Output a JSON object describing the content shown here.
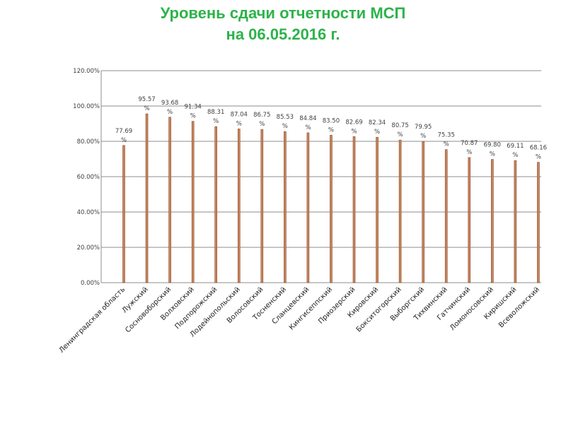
{
  "header": {
    "title_line1": "Уровень сдачи отчетности МСП",
    "title_line2": "на 06.05.2016 г."
  },
  "chart_data": {
    "type": "bar",
    "title": "Уровень сдачи отчетности МСП на 06.05.2016 г.",
    "xlabel": "",
    "ylabel": "",
    "ylim": [
      0,
      120
    ],
    "y_ticks": [
      "0.00%",
      "20.00%",
      "40.00%",
      "60.00%",
      "80.00%",
      "100.00%",
      "120.00%"
    ],
    "grid": true,
    "colors": {
      "bar": "#c8845c",
      "bar_edge": "#8a4e2d",
      "grid": "#8c8c8c",
      "axis": "#8c8c8c"
    },
    "categories": [
      "Ленинградская область",
      "Лужский",
      "Сосновоборский",
      "Волховский",
      "Подпорожский",
      "Лодейнопольский",
      "Волосовский",
      "Тосненский",
      "Сланцевский",
      "Кингисеппский",
      "Приозерский",
      "Кировский",
      "Бокситогорский",
      "Выборгский",
      "Тихвинский",
      "Гатчинский",
      "Ломоносовский",
      "Киришский",
      "Всеволожский"
    ],
    "values": [
      77.69,
      95.57,
      93.68,
      91.34,
      88.31,
      87.04,
      86.75,
      85.53,
      84.84,
      83.5,
      82.69,
      82.34,
      80.75,
      79.95,
      75.35,
      70.87,
      69.8,
      69.11,
      68.16
    ],
    "data_labels": [
      [
        "77.69",
        "%"
      ],
      [
        "95.57",
        "%"
      ],
      [
        "93.68",
        "%"
      ],
      [
        "91.34",
        "%"
      ],
      [
        "88.31",
        "%"
      ],
      [
        "87.04",
        "%"
      ],
      [
        "86.75",
        "%"
      ],
      [
        "85.53",
        "%"
      ],
      [
        "84.84",
        "%"
      ],
      [
        "83.50",
        "%"
      ],
      [
        "82.69",
        "%"
      ],
      [
        "82.34",
        "%"
      ],
      [
        "80.75",
        "%"
      ],
      [
        "79.95",
        "%"
      ],
      [
        "75.35",
        "%"
      ],
      [
        "70.87",
        "%"
      ],
      [
        "69.80",
        "%"
      ],
      [
        "69.11",
        "%"
      ],
      [
        "68.16",
        "%"
      ]
    ]
  }
}
